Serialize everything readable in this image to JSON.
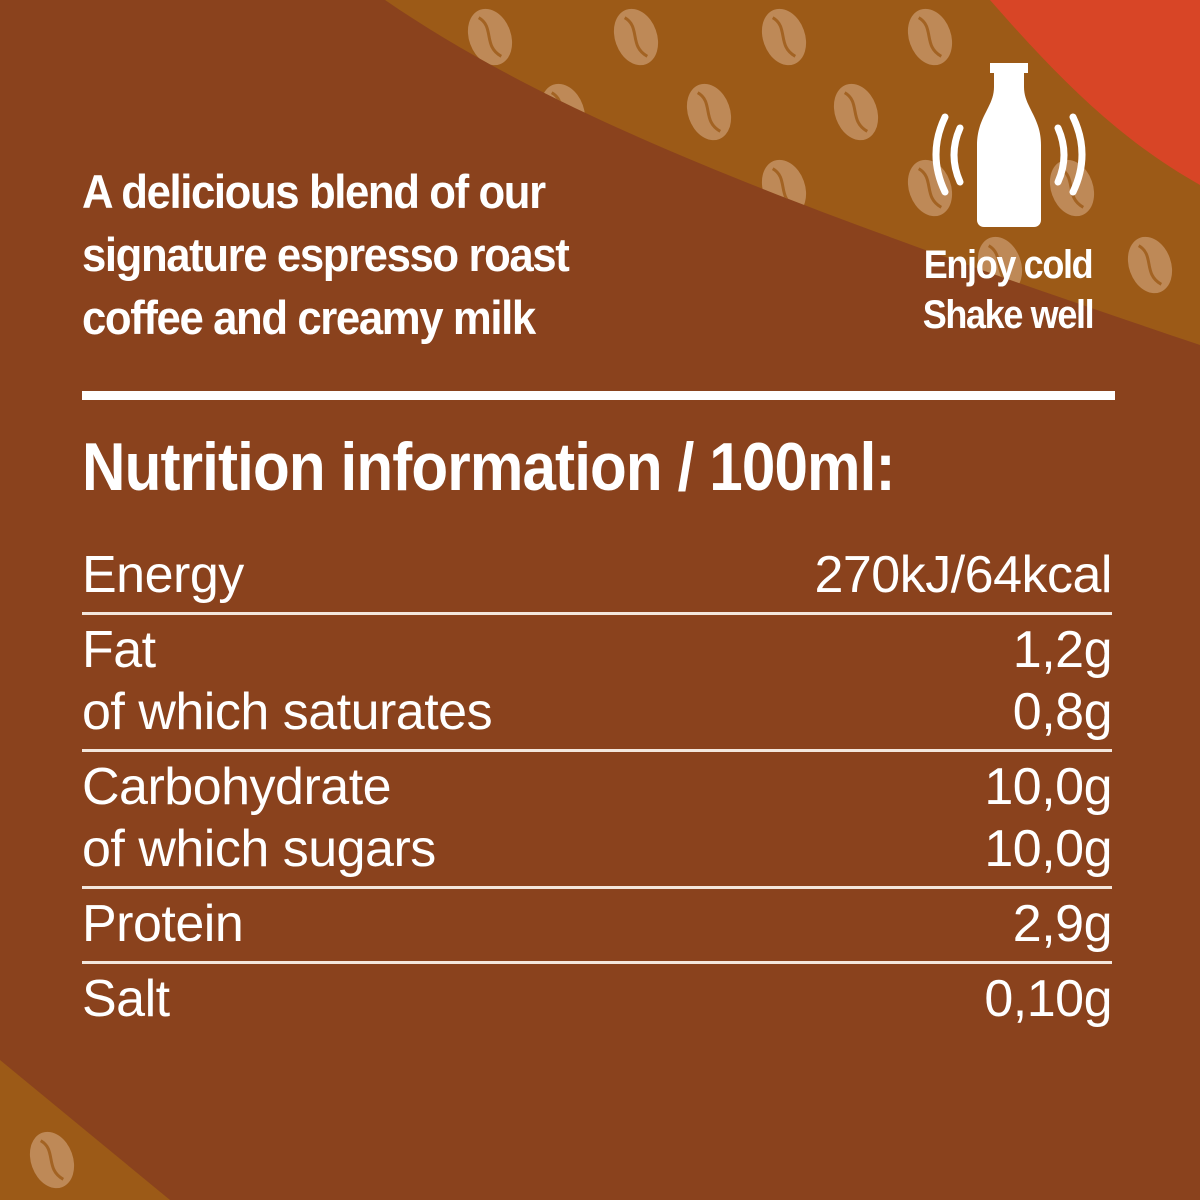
{
  "colors": {
    "background": "#8a421d",
    "amber": "#9c5a17",
    "red": "#d84526",
    "bean": "#c99a6e",
    "text": "#ffffff"
  },
  "headline": [
    "A delicious blend of our",
    "signature espresso roast",
    "coffee and  creamy milk"
  ],
  "badge": {
    "icon": "shaking-bottle-icon",
    "lines": [
      "Enjoy cold",
      "Shake well"
    ]
  },
  "nutrition": {
    "title": "Nutrition information / 100ml:",
    "groups": [
      [
        {
          "label": "Energy",
          "value": "270kJ/64kcal"
        }
      ],
      [
        {
          "label": "Fat",
          "value": "1,2g"
        },
        {
          "label": "of which saturates",
          "value": "0,8g"
        }
      ],
      [
        {
          "label": "Carbohydrate",
          "value": "10,0g"
        },
        {
          "label": "of which sugars",
          "value": "10,0g"
        }
      ],
      [
        {
          "label": "Protein",
          "value": "2,9g"
        }
      ],
      [
        {
          "label": "Salt",
          "value": "0,10g"
        }
      ]
    ]
  }
}
